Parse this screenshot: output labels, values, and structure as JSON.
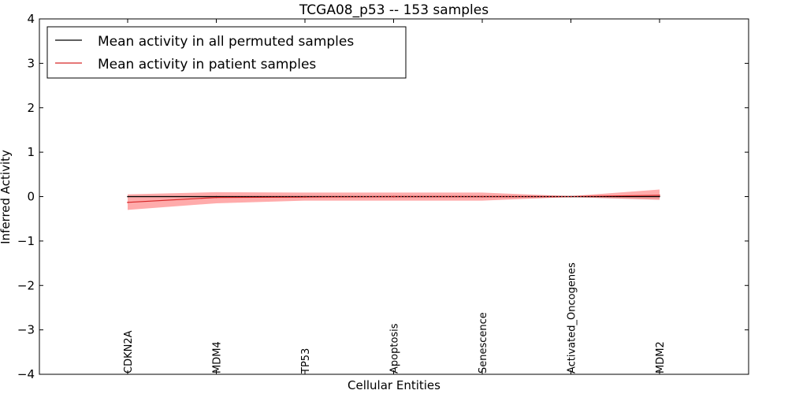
{
  "chart_data": {
    "type": "line",
    "title": "TCGA08_p53 -- 153 samples",
    "xlabel": "Cellular Entities",
    "ylabel": "Inferred Activity",
    "ylim": [
      -4,
      4
    ],
    "yticks": [
      -4,
      -3,
      -2,
      -1,
      0,
      1,
      2,
      3,
      4
    ],
    "categories": [
      "CDKN2A",
      "MDM4",
      "TP53",
      "Apoptosis",
      "Senescence",
      "Activated_Oncogenes",
      "MDM2"
    ],
    "legend_position": "top-left",
    "grid": false,
    "series": [
      {
        "name": "Mean activity in all permuted samples",
        "color": "#000000",
        "values": [
          0.0,
          0.0,
          0.0,
          0.0,
          0.0,
          0.0,
          0.0
        ],
        "band_lower": [
          -0.02,
          -0.02,
          -0.02,
          -0.02,
          -0.02,
          -0.02,
          -0.07
        ],
        "band_upper": [
          0.02,
          0.02,
          0.02,
          0.02,
          0.02,
          0.02,
          0.02
        ],
        "band_color": "#cccccc"
      },
      {
        "name": "Mean activity in patient samples",
        "color": "#d62728",
        "values": [
          -0.13,
          -0.02,
          -0.01,
          0.0,
          0.0,
          0.0,
          0.03
        ],
        "band_lower": [
          -0.3,
          -0.15,
          -0.09,
          -0.09,
          -0.09,
          -0.01,
          -0.07
        ],
        "band_upper": [
          0.05,
          0.1,
          0.09,
          0.09,
          0.09,
          0.01,
          0.16
        ],
        "band_color": "#ff6666"
      }
    ]
  }
}
